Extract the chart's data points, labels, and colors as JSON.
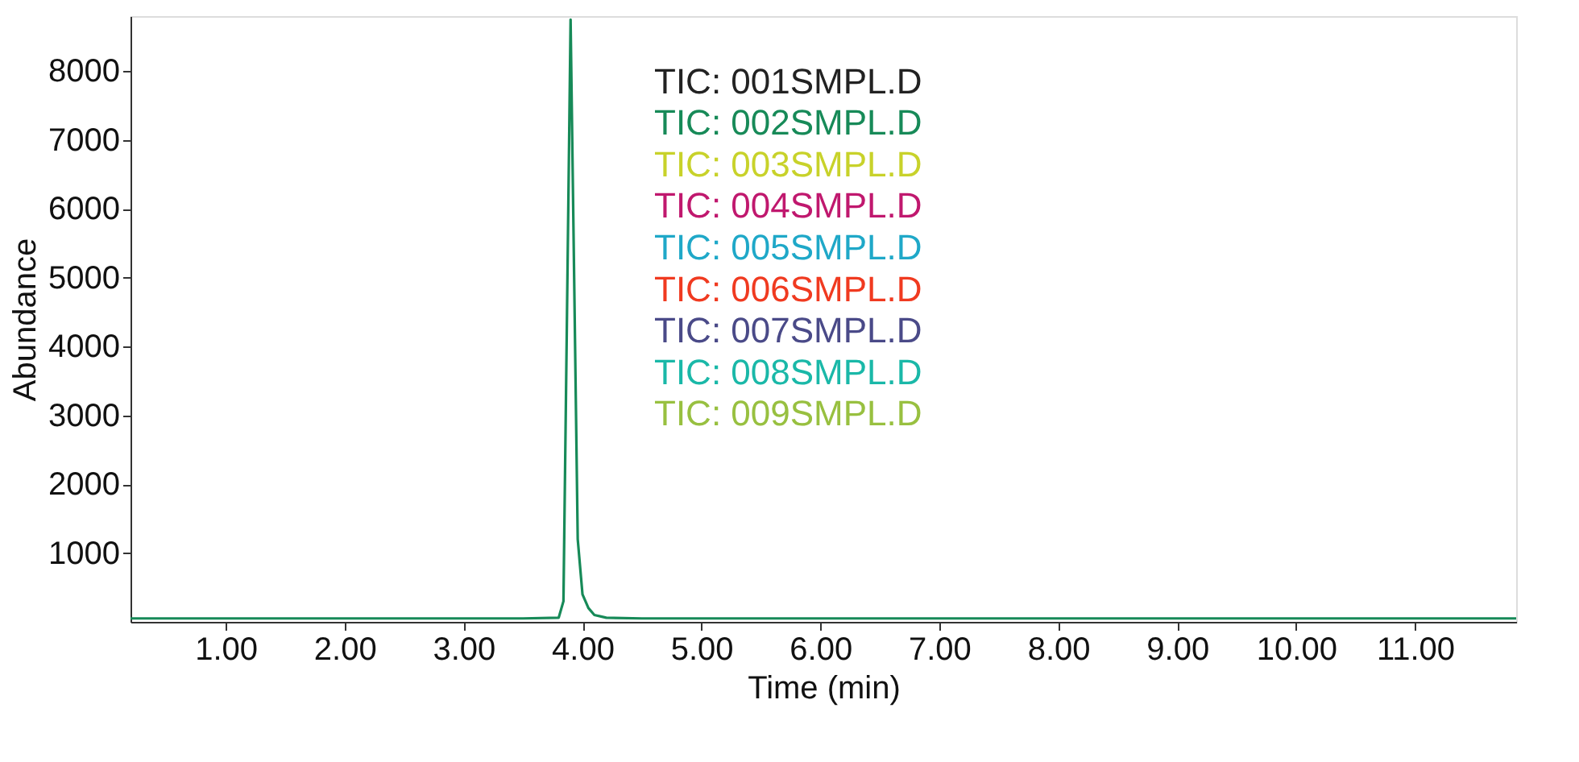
{
  "chart_data": {
    "type": "line",
    "xlabel": "Time (min)",
    "ylabel": "Abundance",
    "x": [
      0.2,
      1.0,
      2.0,
      3.0,
      3.5,
      3.8,
      3.84,
      3.87,
      3.9,
      3.93,
      3.96,
      4.0,
      4.05,
      4.1,
      4.2,
      4.5,
      5.0,
      6.0,
      7.0,
      8.0,
      9.0,
      10.0,
      11.0,
      11.85
    ],
    "series": [
      {
        "name": "TIC: 001SMPL.D",
        "color": "#222222",
        "values": [
          null,
          null,
          null,
          null,
          null,
          null,
          null,
          null,
          null,
          null,
          null,
          null,
          null,
          null,
          null,
          null,
          null,
          null,
          null,
          null,
          null,
          null,
          null,
          null
        ]
      },
      {
        "name": "TIC: 002SMPL.D",
        "color": "#178a58",
        "values": [
          50,
          50,
          50,
          50,
          50,
          60,
          300,
          4500,
          8750,
          5000,
          1200,
          400,
          200,
          100,
          60,
          50,
          50,
          50,
          50,
          50,
          50,
          50,
          50,
          50
        ]
      },
      {
        "name": "TIC: 003SMPL.D",
        "color": "#c8d22a",
        "values": [
          null,
          null,
          null,
          null,
          null,
          null,
          null,
          null,
          null,
          null,
          null,
          null,
          null,
          null,
          null,
          null,
          null,
          null,
          null,
          null,
          null,
          null,
          null,
          null
        ]
      },
      {
        "name": "TIC: 004SMPL.D",
        "color": "#c0186e",
        "values": [
          null,
          null,
          null,
          null,
          null,
          null,
          null,
          null,
          null,
          null,
          null,
          null,
          null,
          null,
          null,
          null,
          null,
          null,
          null,
          null,
          null,
          null,
          null,
          null
        ]
      },
      {
        "name": "TIC: 005SMPL.D",
        "color": "#1fa8c8",
        "values": [
          null,
          null,
          null,
          null,
          null,
          null,
          null,
          null,
          null,
          null,
          null,
          null,
          null,
          null,
          null,
          null,
          null,
          null,
          null,
          null,
          null,
          null,
          null,
          null
        ]
      },
      {
        "name": "TIC: 006SMPL.D",
        "color": "#f03a20",
        "values": [
          null,
          null,
          null,
          null,
          null,
          null,
          null,
          null,
          null,
          null,
          null,
          null,
          null,
          null,
          null,
          null,
          null,
          null,
          null,
          null,
          null,
          null,
          null,
          null
        ]
      },
      {
        "name": "TIC: 007SMPL.D",
        "color": "#4a4a88",
        "values": [
          null,
          null,
          null,
          null,
          null,
          null,
          null,
          null,
          null,
          null,
          null,
          null,
          null,
          null,
          null,
          null,
          null,
          null,
          null,
          null,
          null,
          null,
          null,
          null
        ]
      },
      {
        "name": "TIC: 008SMPL.D",
        "color": "#1ab8a8",
        "values": [
          null,
          null,
          null,
          null,
          null,
          null,
          null,
          null,
          null,
          null,
          null,
          null,
          null,
          null,
          null,
          null,
          null,
          null,
          null,
          null,
          null,
          null,
          null,
          null
        ]
      },
      {
        "name": "TIC: 009SMPL.D",
        "color": "#98c040",
        "values": [
          null,
          null,
          null,
          null,
          null,
          null,
          null,
          null,
          null,
          null,
          null,
          null,
          null,
          null,
          null,
          null,
          null,
          null,
          null,
          null,
          null,
          null,
          null,
          null
        ]
      }
    ],
    "xlim": [
      0.2,
      11.85
    ],
    "xticks": [
      {
        "value": 1,
        "label": "1.00"
      },
      {
        "value": 2,
        "label": "2.00"
      },
      {
        "value": 3,
        "label": "3.00"
      },
      {
        "value": 4,
        "label": "4.00"
      },
      {
        "value": 5,
        "label": "5.00"
      },
      {
        "value": 6,
        "label": "6.00"
      },
      {
        "value": 7,
        "label": "7.00"
      },
      {
        "value": 8,
        "label": "8.00"
      },
      {
        "value": 9,
        "label": "9.00"
      },
      {
        "value": 10,
        "label": "10.00"
      },
      {
        "value": 11,
        "label": "11.00"
      }
    ],
    "ylim": [
      0,
      8800
    ],
    "yticks": [
      1000,
      2000,
      3000,
      4000,
      5000,
      6000,
      7000,
      8000
    ],
    "legend": "top",
    "grid": false,
    "marker": "none",
    "line_style": "solid"
  }
}
